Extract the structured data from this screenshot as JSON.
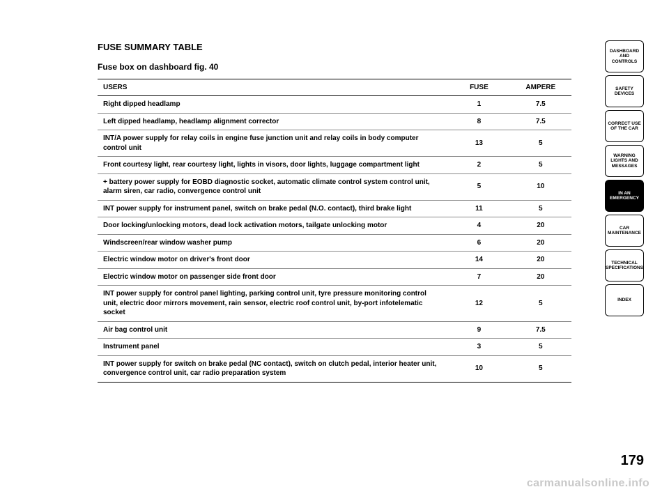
{
  "heading": "FUSE SUMMARY TABLE",
  "subheading": "Fuse box on dashboard fig. 40",
  "columns": [
    "USERS",
    "FUSE",
    "AMPERE"
  ],
  "rows": [
    [
      "Right dipped headlamp",
      "1",
      "7.5"
    ],
    [
      "Left dipped headlamp, headlamp alignment corrector",
      "8",
      "7.5"
    ],
    [
      "INT/A power supply for relay coils in engine fuse junction unit and relay coils in body computer control unit",
      "13",
      "5"
    ],
    [
      "Front courtesy light, rear courtesy light, lights in visors, door lights, luggage compartment light",
      "2",
      "5"
    ],
    [
      "+ battery power supply for EOBD diagnostic socket, automatic climate control system control unit, alarm siren, car radio, convergence control unit",
      "5",
      "10"
    ],
    [
      "INT power supply for instrument panel, switch on brake pedal (N.O. contact), third brake light",
      "11",
      "5"
    ],
    [
      "Door locking/unlocking motors, dead lock activation motors, tailgate unlocking motor",
      "4",
      "20"
    ],
    [
      "Windscreen/rear window washer pump",
      "6",
      "20"
    ],
    [
      "Electric window motor on driver's front door",
      "14",
      "20"
    ],
    [
      "Electric window motor on passenger side front door",
      "7",
      "20"
    ],
    [
      "INT power supply for control panel lighting, parking control unit, tyre pressure monitoring control unit, electric door mirrors movement, rain sensor, electric roof control unit, by-port infotelematic socket",
      "12",
      "5"
    ],
    [
      "Air bag control unit",
      "9",
      "7.5"
    ],
    [
      "Instrument panel",
      "3",
      "5"
    ],
    [
      "INT power supply for switch on brake pedal (NC contact), switch on clutch pedal, interior heater unit, convergence control unit, car radio preparation system",
      "10",
      "5"
    ]
  ],
  "tabs": [
    {
      "label": "DASHBOARD AND CONTROLS",
      "active": false
    },
    {
      "label": "SAFETY DEVICES",
      "active": false
    },
    {
      "label": "CORRECT USE OF THE CAR",
      "active": false
    },
    {
      "label": "WARNING LIGHTS AND MESSAGES",
      "active": false
    },
    {
      "label": "IN AN EMERGENCY",
      "active": true
    },
    {
      "label": "CAR MAINTENANCE",
      "active": false
    },
    {
      "label": "TECHNICAL SPECIFICATIONS",
      "active": false
    },
    {
      "label": "INDEX",
      "active": false
    }
  ],
  "page_number": "179",
  "watermark": "carmanualsonline.info"
}
